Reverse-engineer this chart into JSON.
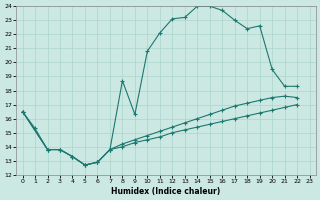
{
  "xlabel": "Humidex (Indice chaleur)",
  "xlim_min": 0,
  "xlim_max": 23,
  "ylim_min": 12,
  "ylim_max": 24,
  "xticks": [
    0,
    1,
    2,
    3,
    4,
    5,
    6,
    7,
    8,
    9,
    10,
    11,
    12,
    13,
    14,
    15,
    16,
    17,
    18,
    19,
    20,
    21,
    22,
    23
  ],
  "yticks": [
    12,
    13,
    14,
    15,
    16,
    17,
    18,
    19,
    20,
    21,
    22,
    23,
    24
  ],
  "bg_color": "#cce8e2",
  "line_color": "#1b7870",
  "grid_color": "#aad4cc",
  "line1_x": [
    0,
    1,
    2,
    3,
    4,
    5,
    6,
    7,
    8,
    9,
    10,
    11,
    12,
    13,
    14,
    15,
    16,
    17,
    18,
    19,
    20,
    21,
    22
  ],
  "line1_y": [
    16.5,
    15.3,
    13.8,
    13.8,
    13.3,
    12.7,
    12.9,
    13.8,
    18.7,
    16.3,
    20.8,
    22.1,
    23.1,
    23.2,
    24.0,
    24.0,
    23.7,
    23.0,
    22.4,
    22.6,
    19.5,
    18.3,
    18.3
  ],
  "line2_x": [
    0,
    2,
    3,
    4,
    5,
    6,
    7,
    8,
    9,
    10,
    11,
    12,
    13,
    14,
    15,
    16,
    17,
    18,
    19,
    20,
    21,
    22
  ],
  "line2_y": [
    16.5,
    13.8,
    13.8,
    13.3,
    12.7,
    12.9,
    13.8,
    14.2,
    14.5,
    14.8,
    15.1,
    15.4,
    15.7,
    16.0,
    16.3,
    16.6,
    16.9,
    17.1,
    17.3,
    17.5,
    17.6,
    17.5
  ],
  "line3_x": [
    0,
    2,
    3,
    4,
    5,
    6,
    7,
    8,
    9,
    10,
    11,
    12,
    13,
    14,
    15,
    16,
    17,
    18,
    19,
    20,
    21,
    22
  ],
  "line3_y": [
    16.5,
    13.8,
    13.8,
    13.3,
    12.7,
    12.9,
    13.8,
    14.0,
    14.3,
    14.5,
    14.7,
    15.0,
    15.2,
    15.4,
    15.6,
    15.8,
    16.0,
    16.2,
    16.4,
    16.6,
    16.8,
    17.0
  ]
}
